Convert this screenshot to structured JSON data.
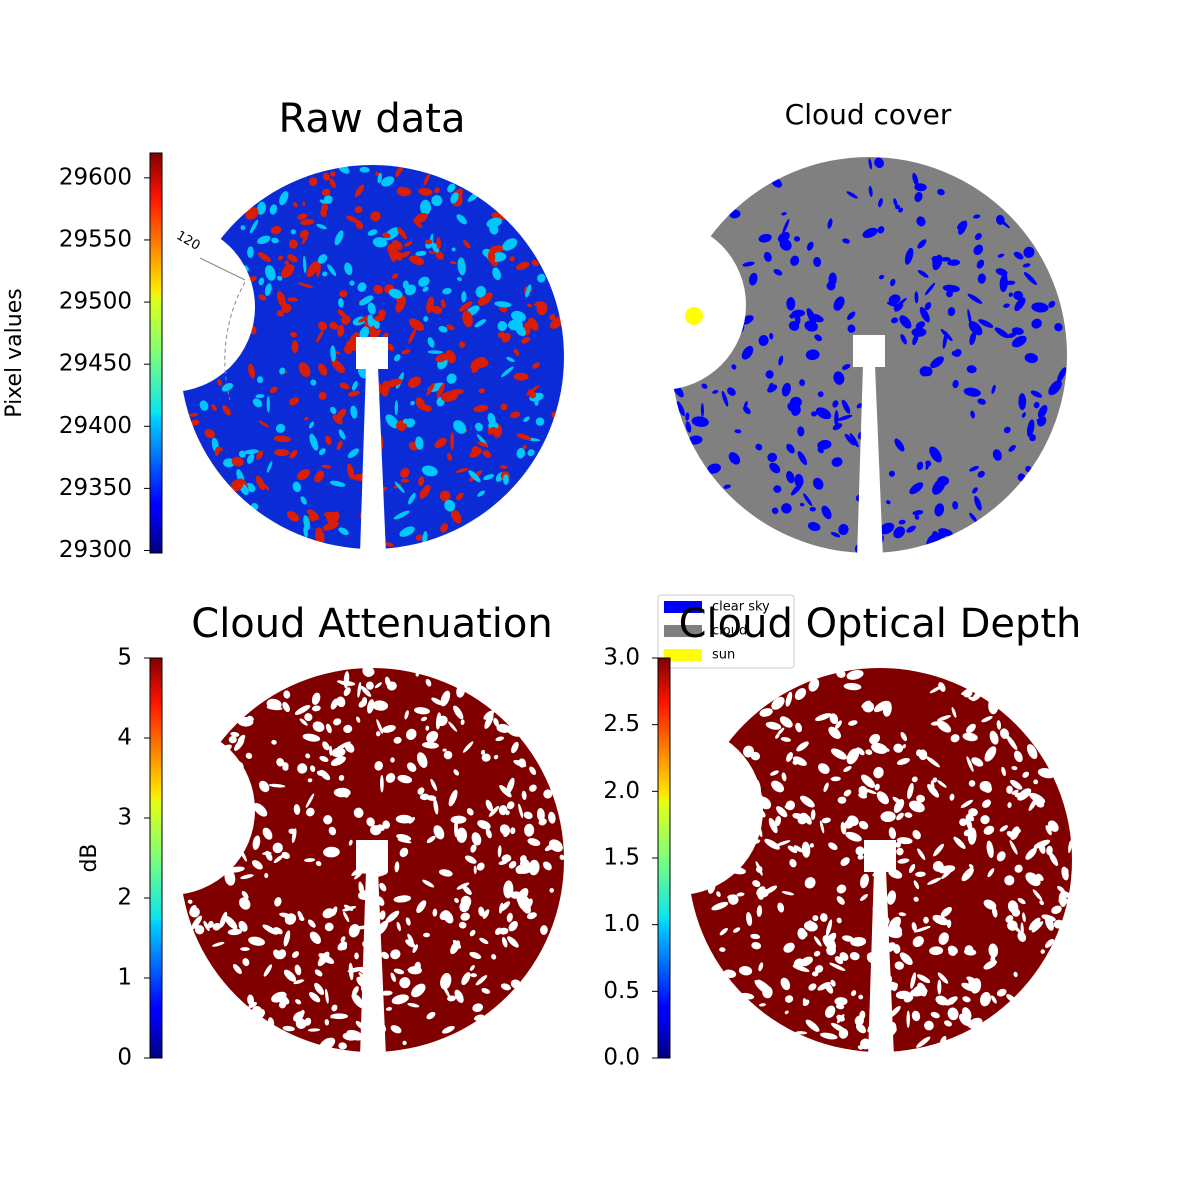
{
  "chart_data": [
    {
      "type": "heatmap",
      "title": "Raw data",
      "annotations": [
        "120"
      ],
      "colorbar": {
        "label": "Pixel values",
        "colormap": "jet",
        "lim": [
          29298,
          29620
        ],
        "ticks": [
          29300,
          29350,
          29400,
          29450,
          29500,
          29550,
          29600
        ]
      }
    },
    {
      "type": "category-map",
      "title": "Cloud cover",
      "legend": [
        {
          "name": "clear sky",
          "color": "#0000ff"
        },
        {
          "name": "cloud",
          "color": "#808080"
        },
        {
          "name": "sun",
          "color": "#ffff00"
        }
      ]
    },
    {
      "type": "heatmap",
      "title": "Cloud Attenuation",
      "colorbar": {
        "label": "dB",
        "colormap": "jet",
        "lim": [
          0,
          5
        ],
        "ticks": [
          0,
          1,
          2,
          3,
          4,
          5
        ]
      }
    },
    {
      "type": "heatmap",
      "title": "Cloud Optical Depth",
      "colorbar": {
        "colormap": "jet",
        "lim": [
          0,
          3
        ],
        "ticks": [
          {
            "value": 0,
            "label": "0.0"
          },
          {
            "value": 0.5,
            "label": "0.5"
          },
          {
            "value": 1,
            "label": "1.0"
          },
          {
            "value": 1.5,
            "label": "1.5"
          },
          {
            "value": 2,
            "label": "2.0"
          },
          {
            "value": 2.5,
            "label": "2.5"
          },
          {
            "value": 3,
            "label": "3.0"
          }
        ]
      }
    }
  ]
}
